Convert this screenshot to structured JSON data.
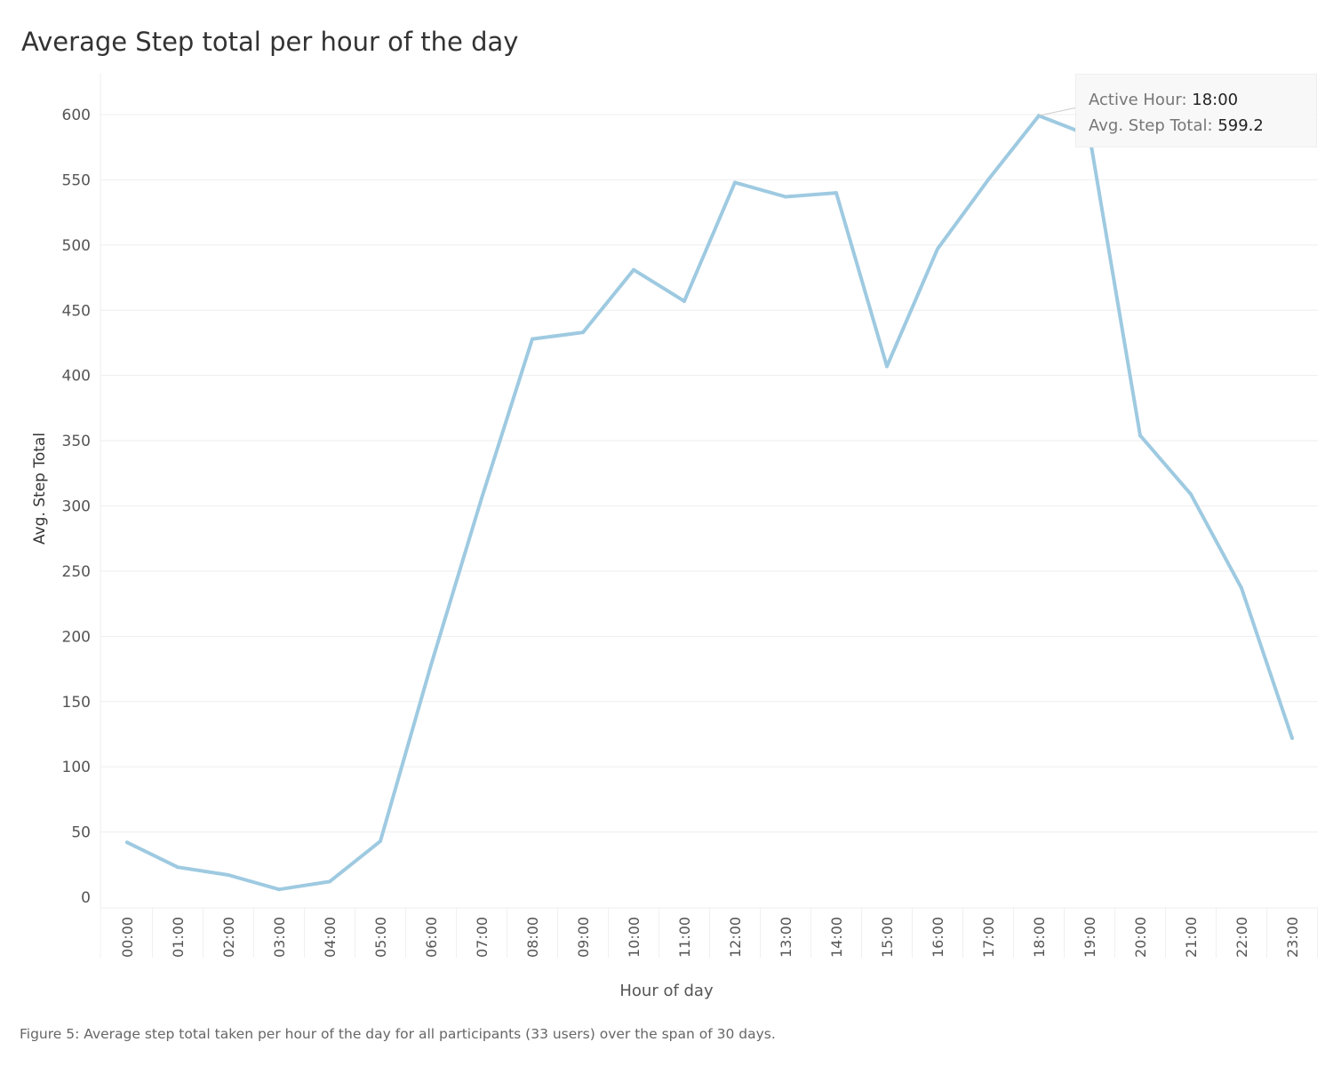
{
  "title": "Average Step total per hour of the day",
  "caption": "Figure 5: Average step total taken per hour of the day for all participants (33 users) over the span of 30 days.",
  "tooltip": {
    "hour_label": "Active Hour:",
    "hour_value": "18:00",
    "step_label": "Avg. Step Total:",
    "step_value": "599.2"
  },
  "chart_data": {
    "type": "line",
    "title": "Average Step total per hour of the day",
    "xlabel": "Hour of day",
    "ylabel": "Avg. Step Total",
    "ylim": [
      0,
      600
    ],
    "yticks": [
      0,
      50,
      100,
      150,
      200,
      250,
      300,
      350,
      400,
      450,
      500,
      550,
      600
    ],
    "categories": [
      "00:00",
      "01:00",
      "02:00",
      "03:00",
      "04:00",
      "05:00",
      "06:00",
      "07:00",
      "08:00",
      "09:00",
      "10:00",
      "11:00",
      "12:00",
      "13:00",
      "14:00",
      "15:00",
      "16:00",
      "17:00",
      "18:00",
      "19:00",
      "20:00",
      "21:00",
      "22:00",
      "23:00"
    ],
    "series": [
      {
        "values": [
          42,
          23,
          17,
          6,
          12,
          43,
          178,
          306,
          428,
          433,
          481,
          457,
          548,
          537,
          540,
          407,
          497,
          550,
          599.2,
          584,
          354,
          309,
          237,
          122
        ],
        "color": "#9ecae1"
      }
    ],
    "grid": true,
    "highlight": {
      "category": "18:00",
      "value": 599.2
    }
  }
}
